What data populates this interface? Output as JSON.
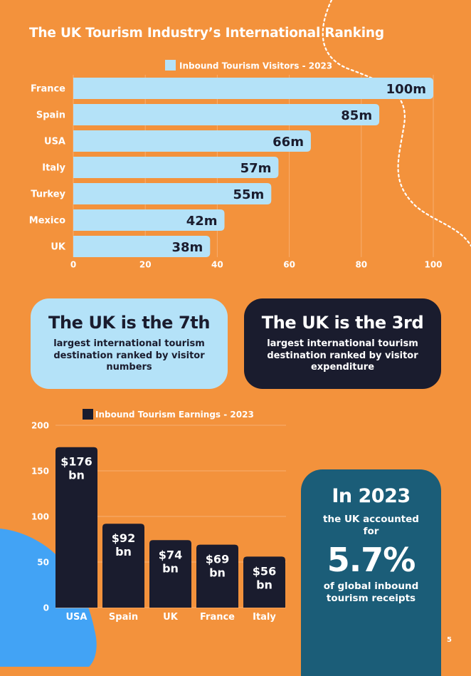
{
  "title": "The UK Tourism Industry’s International Ranking",
  "colors": {
    "background": "#F3923C",
    "light_blue": "#B4E2F8",
    "navy": "#1A1C2E",
    "teal": "#1B5D78",
    "blob_blue": "#42A3F5"
  },
  "chart_data": [
    {
      "type": "bar",
      "orientation": "horizontal",
      "title": "",
      "legend": "Inbound Tourism Visitors - 2023",
      "categories": [
        "France",
        "Spain",
        "USA",
        "Italy",
        "Turkey",
        "Mexico",
        "UK"
      ],
      "values": [
        100,
        85,
        66,
        57,
        55,
        42,
        38
      ],
      "value_labels": [
        "100m",
        "85m",
        "66m",
        "57m",
        "55m",
        "42m",
        "38m"
      ],
      "xlim": [
        0,
        100
      ],
      "xticks": [
        0,
        20,
        40,
        60,
        80,
        100
      ],
      "xlabel": "",
      "ylabel": "",
      "grid": true,
      "legend_position": "top-center"
    },
    {
      "type": "bar",
      "orientation": "vertical",
      "title": "",
      "legend": "Inbound Tourism Earnings - 2023",
      "categories": [
        "USA",
        "Spain",
        "UK",
        "France",
        "Italy"
      ],
      "values": [
        176,
        92,
        74,
        69,
        56
      ],
      "value_labels": [
        [
          "$176",
          "bn"
        ],
        [
          "$92",
          "bn"
        ],
        [
          "$74",
          "bn"
        ],
        [
          "$69",
          "bn"
        ],
        [
          "$56",
          "bn"
        ]
      ],
      "ylim": [
        0,
        200
      ],
      "yticks": [
        0,
        50,
        100,
        150,
        200
      ],
      "xlabel": "",
      "ylabel": "",
      "grid": true,
      "legend_position": "top-center"
    }
  ],
  "cards": [
    {
      "heading": "The UK is the 7th",
      "text": "largest international tourism destination ranked by visitor numbers"
    },
    {
      "heading": "The UK is the 3rd",
      "text": "largest international tourism destination ranked by visitor expenditure"
    }
  ],
  "stat": {
    "year": "In 2023",
    "line1": "the UK accounted for",
    "percent": "5.7%",
    "line2": "of global inbound tourism receipts"
  },
  "page_number": "5"
}
